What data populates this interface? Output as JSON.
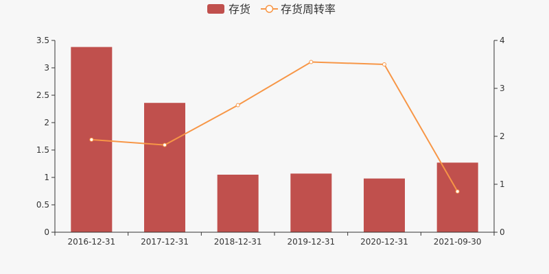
{
  "chart_data": {
    "type": "bar",
    "categories": [
      "2016-12-31",
      "2017-12-31",
      "2018-12-31",
      "2019-12-31",
      "2020-12-31",
      "2021-09-30"
    ],
    "series": [
      {
        "name": "存货",
        "type": "bar",
        "axis": "left",
        "color": "#c0504d",
        "values": [
          3.38,
          2.36,
          1.05,
          1.07,
          0.98,
          1.27
        ]
      },
      {
        "name": "存货周转率",
        "type": "line",
        "axis": "right",
        "color": "#f79646",
        "values": [
          1.93,
          1.82,
          2.65,
          3.55,
          3.5,
          0.85
        ]
      }
    ],
    "y_left": {
      "min": 0,
      "max": 3.5,
      "ticks": [
        "0",
        "0.5",
        "1",
        "1.5",
        "2",
        "2.5",
        "3",
        "3.5"
      ]
    },
    "y_right": {
      "min": 0,
      "max": 4,
      "ticks": [
        "0",
        "1",
        "2",
        "3",
        "4"
      ]
    },
    "grid": false,
    "legend": "top-center"
  }
}
